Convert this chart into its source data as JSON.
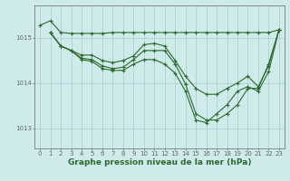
{
  "series": [
    {
      "x": [
        0,
        1,
        2,
        3,
        4,
        5,
        6,
        7,
        8,
        9,
        10,
        11,
        12,
        13,
        14,
        15,
        16,
        17,
        18,
        19,
        20,
        21,
        22,
        23
      ],
      "y": [
        1015.28,
        1015.38,
        1015.12,
        1015.1,
        1015.1,
        1015.1,
        1015.1,
        1015.12,
        1015.12,
        1015.12,
        1015.12,
        1015.12,
        1015.12,
        1015.12,
        1015.12,
        1015.12,
        1015.12,
        1015.12,
        1015.12,
        1015.12,
        1015.12,
        1015.12,
        1015.12,
        1015.18
      ]
    },
    {
      "x": [
        1,
        2,
        3,
        4,
        5,
        6,
        7,
        8,
        9,
        10,
        11,
        12,
        13,
        14,
        15,
        16,
        17,
        18,
        19,
        20,
        21,
        22,
        23
      ],
      "y": [
        1015.12,
        1014.82,
        1014.72,
        1014.62,
        1014.62,
        1014.5,
        1014.45,
        1014.5,
        1014.6,
        1014.85,
        1014.88,
        1014.82,
        1014.5,
        1014.15,
        1013.88,
        1013.75,
        1013.75,
        1013.88,
        1014.0,
        1014.15,
        1013.92,
        1014.38,
        1015.18
      ]
    },
    {
      "x": [
        1,
        2,
        3,
        4,
        5,
        6,
        7,
        8,
        9,
        10,
        11,
        12,
        13,
        14,
        15,
        16,
        17,
        18,
        19,
        20,
        21,
        22,
        23
      ],
      "y": [
        1015.12,
        1014.82,
        1014.72,
        1014.55,
        1014.52,
        1014.38,
        1014.32,
        1014.35,
        1014.52,
        1014.72,
        1014.72,
        1014.72,
        1014.42,
        1013.98,
        1013.32,
        1013.18,
        1013.18,
        1013.32,
        1013.52,
        1013.88,
        1013.88,
        1014.42,
        1015.18
      ]
    },
    {
      "x": [
        1,
        2,
        3,
        4,
        5,
        6,
        7,
        8,
        9,
        10,
        11,
        12,
        13,
        14,
        15,
        16,
        17,
        18,
        19,
        20,
        21,
        22,
        23
      ],
      "y": [
        1015.12,
        1014.82,
        1014.72,
        1014.52,
        1014.48,
        1014.32,
        1014.28,
        1014.28,
        1014.42,
        1014.52,
        1014.52,
        1014.42,
        1014.22,
        1013.82,
        1013.18,
        1013.12,
        1013.32,
        1013.52,
        1013.82,
        1013.92,
        1013.82,
        1014.25,
        1015.18
      ]
    }
  ],
  "line_color": "#2d6a2d",
  "marker": "+",
  "markersize": 3,
  "linewidth": 0.8,
  "markeredgewidth": 0.8,
  "background_color": "#ceeaea",
  "grid_color": "#aacccc",
  "axis_color": "#666666",
  "xlabel": "Graphe pression niveau de la mer (hPa)",
  "xlabel_fontsize": 6.5,
  "ylabel_ticks": [
    1013,
    1014,
    1015
  ],
  "xlim": [
    -0.5,
    23.5
  ],
  "ylim": [
    1012.55,
    1015.72
  ],
  "xtick_labels": [
    "0",
    "1",
    "2",
    "3",
    "4",
    "5",
    "6",
    "7",
    "8",
    "9",
    "10",
    "11",
    "12",
    "13",
    "14",
    "15",
    "16",
    "17",
    "18",
    "19",
    "20",
    "21",
    "22",
    "23"
  ],
  "tick_fontsize": 5.0,
  "figsize": [
    3.2,
    2.0
  ],
  "dpi": 100
}
